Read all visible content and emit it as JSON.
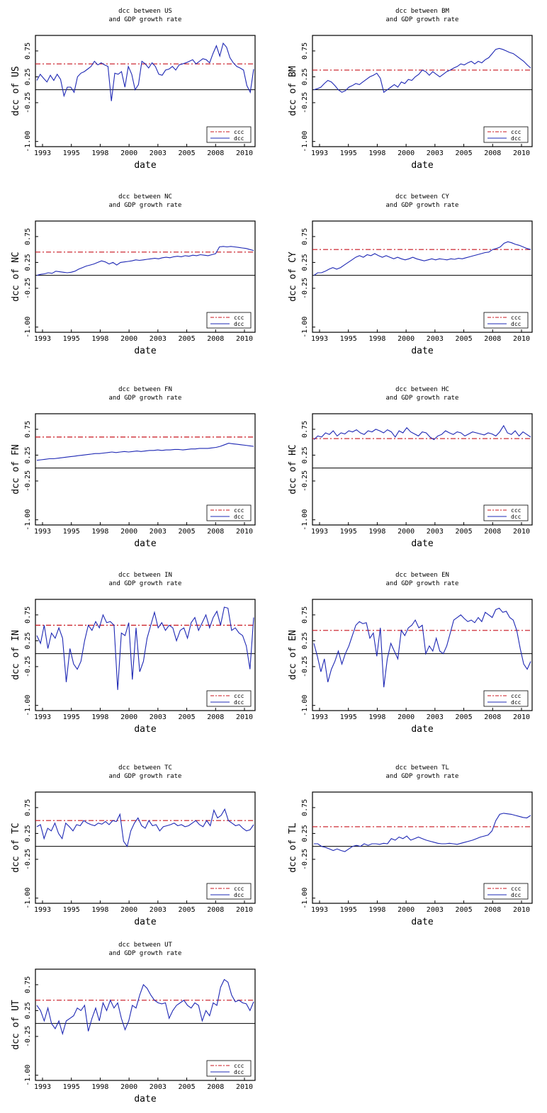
{
  "colors": {
    "ccc": "#c8141e",
    "dcc": "#1e28b4",
    "axis": "#000000",
    "zero": "#000000"
  },
  "chart_data": [
    {
      "type": "line",
      "title_line1": "dcc between US",
      "title_line2": "and GDP growth rate",
      "xlabel": "date",
      "ylabel": "dcc of US",
      "x_ticks": [
        "1993",
        "1995",
        "1998",
        "2000",
        "2003",
        "2005",
        "2008",
        "2010"
      ],
      "y_ticks": [
        "0.75",
        "0.25",
        "-0.25",
        "-1.00"
      ],
      "ylim": [
        -1.1,
        1.05
      ],
      "xlim": [
        1993,
        2012
      ],
      "ccc": 0.5,
      "legend": [
        "ccc",
        "dcc"
      ],
      "dcc": [
        0.18,
        0.3,
        0.22,
        0.15,
        0.28,
        0.18,
        0.3,
        0.2,
        -0.12,
        0.05,
        0.05,
        -0.05,
        0.25,
        0.32,
        0.35,
        0.4,
        0.45,
        0.55,
        0.48,
        0.52,
        0.48,
        0.45,
        -0.22,
        0.32,
        0.3,
        0.35,
        0.05,
        0.45,
        0.3,
        0.0,
        0.1,
        0.55,
        0.5,
        0.42,
        0.52,
        0.45,
        0.3,
        0.28,
        0.38,
        0.4,
        0.45,
        0.38,
        0.48,
        0.5,
        0.52,
        0.55,
        0.58,
        0.5,
        0.55,
        0.6,
        0.58,
        0.52,
        0.7,
        0.85,
        0.65,
        0.9,
        0.82,
        0.62,
        0.52,
        0.45,
        0.42,
        0.38,
        0.08,
        -0.05,
        0.4
      ]
    },
    {
      "type": "line",
      "title_line1": "dcc between BM",
      "title_line2": "and GDP growth rate",
      "xlabel": "date",
      "ylabel": "dcc of BM",
      "x_ticks": [
        "1993",
        "1995",
        "1998",
        "2000",
        "2003",
        "2005",
        "2008",
        "2010"
      ],
      "y_ticks": [
        "0.75",
        "0.25",
        "-0.25",
        "-1.00"
      ],
      "ylim": [
        -1.1,
        1.05
      ],
      "xlim": [
        1993,
        2012
      ],
      "ccc": 0.38,
      "legend": [
        "ccc",
        "dcc"
      ],
      "dcc": [
        0.0,
        0.02,
        0.05,
        0.12,
        0.18,
        0.15,
        0.08,
        0.0,
        -0.05,
        -0.02,
        0.05,
        0.08,
        0.12,
        0.1,
        0.15,
        0.2,
        0.25,
        0.28,
        0.32,
        0.22,
        -0.05,
        0.0,
        0.05,
        0.1,
        0.05,
        0.15,
        0.12,
        0.2,
        0.18,
        0.25,
        0.3,
        0.38,
        0.35,
        0.28,
        0.35,
        0.3,
        0.25,
        0.3,
        0.35,
        0.38,
        0.42,
        0.45,
        0.5,
        0.48,
        0.52,
        0.55,
        0.5,
        0.55,
        0.52,
        0.58,
        0.62,
        0.7,
        0.78,
        0.8,
        0.78,
        0.75,
        0.72,
        0.7,
        0.65,
        0.6,
        0.55,
        0.48,
        0.42
      ]
    },
    {
      "type": "line",
      "title_line1": "dcc between NC",
      "title_line2": "and GDP growth rate",
      "xlabel": "date",
      "ylabel": "dcc of NC",
      "x_ticks": [
        "1993",
        "1995",
        "1998",
        "2000",
        "2003",
        "2005",
        "2008",
        "2010"
      ],
      "y_ticks": [
        "0.75",
        "0.25",
        "-0.25",
        "-1.00"
      ],
      "ylim": [
        -1.1,
        1.05
      ],
      "xlim": [
        1993,
        2012
      ],
      "ccc": 0.45,
      "legend": [
        "ccc",
        "dcc"
      ],
      "dcc": [
        0.0,
        0.02,
        0.03,
        0.05,
        0.04,
        0.08,
        0.07,
        0.06,
        0.05,
        0.06,
        0.08,
        0.12,
        0.15,
        0.18,
        0.2,
        0.22,
        0.25,
        0.28,
        0.26,
        0.22,
        0.25,
        0.2,
        0.25,
        0.26,
        0.27,
        0.28,
        0.3,
        0.29,
        0.3,
        0.31,
        0.32,
        0.33,
        0.32,
        0.34,
        0.35,
        0.34,
        0.36,
        0.37,
        0.36,
        0.38,
        0.37,
        0.39,
        0.38,
        0.4,
        0.39,
        0.38,
        0.4,
        0.42,
        0.55,
        0.56,
        0.55,
        0.56,
        0.55,
        0.54,
        0.53,
        0.52,
        0.5,
        0.48
      ]
    },
    {
      "type": "line",
      "title_line1": "dcc between CY",
      "title_line2": "and GDP growth rate",
      "xlabel": "date",
      "ylabel": "dcc of CY",
      "x_ticks": [
        "1993",
        "1995",
        "1998",
        "2000",
        "2003",
        "2005",
        "2008",
        "2010"
      ],
      "y_ticks": [
        "0.75",
        "0.25",
        "-0.25",
        "-1.00"
      ],
      "ylim": [
        -1.1,
        1.05
      ],
      "xlim": [
        1993,
        2012
      ],
      "ccc": 0.5,
      "legend": [
        "ccc",
        "dcc"
      ],
      "dcc": [
        0.0,
        0.05,
        0.05,
        0.08,
        0.12,
        0.15,
        0.12,
        0.15,
        0.2,
        0.25,
        0.3,
        0.35,
        0.38,
        0.35,
        0.4,
        0.38,
        0.42,
        0.38,
        0.35,
        0.38,
        0.35,
        0.32,
        0.35,
        0.32,
        0.3,
        0.32,
        0.35,
        0.32,
        0.3,
        0.28,
        0.3,
        0.32,
        0.3,
        0.32,
        0.31,
        0.3,
        0.32,
        0.31,
        0.33,
        0.32,
        0.34,
        0.36,
        0.38,
        0.4,
        0.42,
        0.44,
        0.45,
        0.5,
        0.52,
        0.55,
        0.62,
        0.65,
        0.63,
        0.6,
        0.58,
        0.55,
        0.52,
        0.5
      ]
    },
    {
      "type": "line",
      "title_line1": "dcc between FN",
      "title_line2": "and GDP growth rate",
      "xlabel": "date",
      "ylabel": "dcc of FN",
      "x_ticks": [
        "1993",
        "1995",
        "1998",
        "2000",
        "2003",
        "2005",
        "2008",
        "2010"
      ],
      "y_ticks": [
        "0.75",
        "0.25",
        "-0.25",
        "-1.00"
      ],
      "ylim": [
        -1.1,
        1.05
      ],
      "xlim": [
        1993,
        2012
      ],
      "ccc": 0.6,
      "legend": [
        "ccc",
        "dcc"
      ],
      "dcc": [
        0.15,
        0.16,
        0.17,
        0.18,
        0.18,
        0.19,
        0.2,
        0.21,
        0.22,
        0.23,
        0.24,
        0.25,
        0.26,
        0.27,
        0.28,
        0.28,
        0.29,
        0.3,
        0.31,
        0.3,
        0.31,
        0.32,
        0.31,
        0.32,
        0.33,
        0.32,
        0.33,
        0.34,
        0.34,
        0.35,
        0.34,
        0.35,
        0.35,
        0.36,
        0.36,
        0.35,
        0.36,
        0.37,
        0.37,
        0.38,
        0.38,
        0.38,
        0.39,
        0.4,
        0.42,
        0.45,
        0.48,
        0.47,
        0.46,
        0.45,
        0.44,
        0.43,
        0.42
      ]
    },
    {
      "type": "line",
      "title_line1": "dcc between HC",
      "title_line2": "and GDP growth rate",
      "xlabel": "date",
      "ylabel": "dcc of HC",
      "x_ticks": [
        "1993",
        "1995",
        "1998",
        "2000",
        "2003",
        "2005",
        "2008",
        "2010"
      ],
      "y_ticks": [
        "0.75",
        "0.25",
        "-0.25",
        "-1.00"
      ],
      "ylim": [
        -1.1,
        1.05
      ],
      "xlim": [
        1993,
        2012
      ],
      "ccc": 0.57,
      "legend": [
        "ccc",
        "dcc"
      ],
      "dcc": [
        0.55,
        0.62,
        0.6,
        0.68,
        0.65,
        0.72,
        0.62,
        0.68,
        0.66,
        0.72,
        0.7,
        0.74,
        0.68,
        0.65,
        0.72,
        0.7,
        0.75,
        0.72,
        0.68,
        0.74,
        0.7,
        0.6,
        0.72,
        0.68,
        0.78,
        0.7,
        0.66,
        0.62,
        0.7,
        0.68,
        0.6,
        0.55,
        0.62,
        0.65,
        0.72,
        0.68,
        0.65,
        0.7,
        0.68,
        0.62,
        0.66,
        0.7,
        0.68,
        0.66,
        0.64,
        0.68,
        0.66,
        0.62,
        0.7,
        0.82,
        0.68,
        0.65,
        0.72,
        0.62,
        0.7,
        0.65,
        0.6
      ]
    },
    {
      "type": "line",
      "title_line1": "dcc between IN",
      "title_line2": "and GDP growth rate",
      "xlabel": "date",
      "ylabel": "dcc of IN",
      "x_ticks": [
        "1993",
        "1995",
        "1998",
        "2000",
        "2003",
        "2005",
        "2008",
        "2010"
      ],
      "y_ticks": [
        "0.75",
        "0.25",
        "-0.25",
        "-1.00"
      ],
      "ylim": [
        -1.1,
        1.05
      ],
      "xlim": [
        1993,
        2012
      ],
      "ccc": 0.55,
      "legend": [
        "ccc",
        "dcc"
      ],
      "dcc": [
        0.35,
        0.2,
        0.55,
        0.1,
        0.4,
        0.3,
        0.5,
        0.3,
        -0.55,
        0.1,
        -0.2,
        -0.3,
        -0.15,
        0.25,
        0.55,
        0.45,
        0.62,
        0.5,
        0.75,
        0.6,
        0.62,
        0.55,
        -0.7,
        0.4,
        0.35,
        0.6,
        -0.5,
        0.5,
        -0.35,
        -0.15,
        0.3,
        0.55,
        0.8,
        0.5,
        0.6,
        0.45,
        0.55,
        0.5,
        0.25,
        0.45,
        0.5,
        0.3,
        0.6,
        0.7,
        0.45,
        0.6,
        0.75,
        0.5,
        0.7,
        0.82,
        0.55,
        0.9,
        0.88,
        0.45,
        0.5,
        0.4,
        0.35,
        0.15,
        -0.3,
        0.7
      ]
    },
    {
      "type": "line",
      "title_line1": "dcc between EN",
      "title_line2": "and GDP growth rate",
      "xlabel": "date",
      "ylabel": "dcc of EN",
      "x_ticks": [
        "1993",
        "1995",
        "1998",
        "2000",
        "2003",
        "2005",
        "2008",
        "2010"
      ],
      "y_ticks": [
        "0.75",
        "0.25",
        "-0.25",
        "-1.00"
      ],
      "ylim": [
        -1.1,
        1.05
      ],
      "xlim": [
        1993,
        2012
      ],
      "ccc": 0.45,
      "legend": [
        "ccc",
        "dcc"
      ],
      "dcc": [
        0.2,
        -0.05,
        -0.35,
        -0.1,
        -0.55,
        -0.3,
        -0.15,
        0.05,
        -0.2,
        0.0,
        0.15,
        0.35,
        0.55,
        0.62,
        0.58,
        0.6,
        0.3,
        0.4,
        -0.05,
        0.5,
        -0.65,
        -0.1,
        0.2,
        0.05,
        -0.1,
        0.45,
        0.35,
        0.5,
        0.55,
        0.65,
        0.5,
        0.55,
        0.0,
        0.15,
        0.05,
        0.3,
        0.05,
        0.0,
        0.15,
        0.4,
        0.65,
        0.7,
        0.75,
        0.68,
        0.62,
        0.65,
        0.6,
        0.7,
        0.62,
        0.8,
        0.75,
        0.7,
        0.85,
        0.88,
        0.8,
        0.82,
        0.7,
        0.65,
        0.45,
        0.1,
        -0.2,
        -0.3,
        -0.15
      ]
    },
    {
      "type": "line",
      "title_line1": "dcc between TC",
      "title_line2": "and GDP growth rate",
      "xlabel": "date",
      "ylabel": "dcc of TC",
      "x_ticks": [
        "1993",
        "1995",
        "1998",
        "2000",
        "2003",
        "2005",
        "2008",
        "2010"
      ],
      "y_ticks": [
        "0.75",
        "0.25",
        "-0.25",
        "-1.00"
      ],
      "ylim": [
        -1.1,
        1.05
      ],
      "xlim": [
        1993,
        2012
      ],
      "ccc": 0.5,
      "legend": [
        "ccc",
        "dcc"
      ],
      "dcc": [
        0.38,
        0.42,
        0.15,
        0.35,
        0.3,
        0.45,
        0.25,
        0.15,
        0.45,
        0.38,
        0.3,
        0.42,
        0.4,
        0.5,
        0.45,
        0.42,
        0.4,
        0.45,
        0.43,
        0.48,
        0.42,
        0.5,
        0.48,
        0.62,
        0.1,
        0.0,
        0.3,
        0.45,
        0.55,
        0.4,
        0.35,
        0.5,
        0.4,
        0.42,
        0.3,
        0.38,
        0.4,
        0.42,
        0.45,
        0.4,
        0.42,
        0.38,
        0.4,
        0.45,
        0.5,
        0.42,
        0.38,
        0.5,
        0.4,
        0.7,
        0.55,
        0.6,
        0.72,
        0.5,
        0.45,
        0.4,
        0.42,
        0.35,
        0.3,
        0.32,
        0.42
      ]
    },
    {
      "type": "line",
      "title_line1": "dcc between TL",
      "title_line2": "and GDP growth rate",
      "xlabel": "date",
      "ylabel": "dcc of TL",
      "x_ticks": [
        "1993",
        "1995",
        "1998",
        "2000",
        "2003",
        "2005",
        "2008",
        "2010"
      ],
      "y_ticks": [
        "0.75",
        "0.25",
        "-0.25",
        "-1.00"
      ],
      "ylim": [
        -1.1,
        1.05
      ],
      "xlim": [
        1993,
        2012
      ],
      "ccc": 0.38,
      "legend": [
        "ccc",
        "dcc"
      ],
      "dcc": [
        0.05,
        0.05,
        0.0,
        -0.02,
        -0.05,
        -0.08,
        -0.05,
        -0.08,
        -0.1,
        -0.05,
        0.0,
        0.02,
        0.0,
        0.05,
        0.02,
        0.05,
        0.05,
        0.04,
        0.06,
        0.05,
        0.15,
        0.12,
        0.18,
        0.15,
        0.2,
        0.12,
        0.15,
        0.18,
        0.15,
        0.12,
        0.1,
        0.08,
        0.06,
        0.05,
        0.05,
        0.06,
        0.05,
        0.04,
        0.06,
        0.08,
        0.1,
        0.12,
        0.15,
        0.18,
        0.2,
        0.22,
        0.3,
        0.5,
        0.62,
        0.64,
        0.63,
        0.62,
        0.6,
        0.58,
        0.56,
        0.55,
        0.6
      ]
    },
    {
      "type": "line",
      "title_line1": "dcc between UT",
      "title_line2": "and GDP growth rate",
      "xlabel": "date",
      "ylabel": "dcc of UT",
      "x_ticks": [
        "1993",
        "1995",
        "1998",
        "2000",
        "2003",
        "2005",
        "2008",
        "2010"
      ],
      "y_ticks": [
        "0.75",
        "0.25",
        "-0.25",
        "-1.00"
      ],
      "ylim": [
        -1.1,
        1.05
      ],
      "xlim": [
        1993,
        2012
      ],
      "ccc": 0.45,
      "legend": [
        "ccc",
        "dcc"
      ],
      "dcc": [
        0.35,
        0.25,
        0.05,
        0.3,
        0.0,
        -0.1,
        0.05,
        -0.2,
        0.05,
        0.1,
        0.15,
        0.3,
        0.25,
        0.35,
        -0.15,
        0.1,
        0.3,
        0.05,
        0.4,
        0.25,
        0.45,
        0.3,
        0.4,
        0.1,
        -0.12,
        0.05,
        0.35,
        0.3,
        0.55,
        0.75,
        0.68,
        0.55,
        0.45,
        0.4,
        0.38,
        0.4,
        0.1,
        0.25,
        0.35,
        0.4,
        0.45,
        0.35,
        0.3,
        0.4,
        0.35,
        0.05,
        0.25,
        0.15,
        0.4,
        0.35,
        0.7,
        0.85,
        0.8,
        0.55,
        0.42,
        0.45,
        0.4,
        0.38,
        0.25,
        0.42
      ]
    }
  ]
}
